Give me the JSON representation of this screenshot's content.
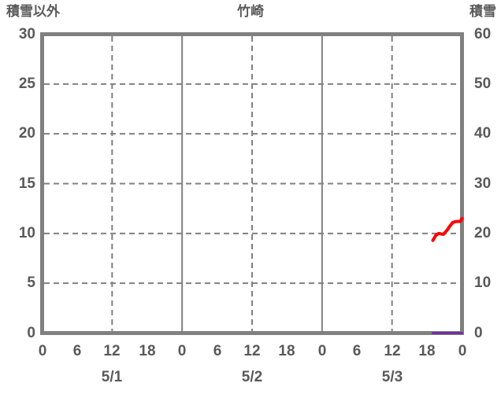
{
  "title": "竹崎",
  "labels": {
    "left_axis": "積雪以外",
    "right_axis": "積雪"
  },
  "colors": {
    "background": "#ffffff",
    "frame": "#808080",
    "grid": "#808080",
    "text": "#595959",
    "series_red": "#ff0000",
    "series_purple": "#7030a0"
  },
  "chart_data": {
    "type": "line",
    "title": "竹崎",
    "left_axis": {
      "label": "積雪以外",
      "min": 0,
      "max": 30,
      "ticks": [
        0,
        5,
        10,
        15,
        20,
        25,
        30
      ]
    },
    "right_axis": {
      "label": "積雪",
      "min": 0,
      "max": 60,
      "ticks": [
        0,
        10,
        20,
        30,
        40,
        50,
        60
      ]
    },
    "x_axis": {
      "min_hours": 0,
      "max_hours": 72,
      "tick_step_hours": 6,
      "hour_tick_labels": [
        "0",
        "6",
        "12",
        "18",
        "0",
        "6",
        "12",
        "18",
        "0",
        "6",
        "12",
        "18",
        "0"
      ],
      "date_labels": [
        {
          "label": "5/1",
          "hour": 12
        },
        {
          "label": "5/2",
          "hour": 36
        },
        {
          "label": "5/3",
          "hour": 60
        }
      ],
      "solid_gridline_hours": [
        24,
        48
      ],
      "dashed_gridline_hours": [
        12,
        36,
        60
      ]
    },
    "horizontal_gridlines_left_scale": [
      5,
      10,
      15,
      20,
      25
    ],
    "grid": true,
    "legend": "none",
    "series": [
      {
        "name": "series-red",
        "color": "#ff0000",
        "axis": "left",
        "points": [
          [
            67,
            9.3
          ],
          [
            67.5,
            9.8
          ],
          [
            68,
            10.0
          ],
          [
            68.8,
            9.9
          ],
          [
            69.4,
            10.3
          ],
          [
            70,
            10.8
          ],
          [
            70.4,
            11.1
          ],
          [
            71,
            11.2
          ],
          [
            71.7,
            11.2
          ],
          [
            72,
            11.5
          ]
        ]
      },
      {
        "name": "series-purple",
        "color": "#7030a0",
        "axis": "right",
        "points": [
          [
            67,
            0
          ],
          [
            72,
            0
          ]
        ]
      }
    ]
  }
}
